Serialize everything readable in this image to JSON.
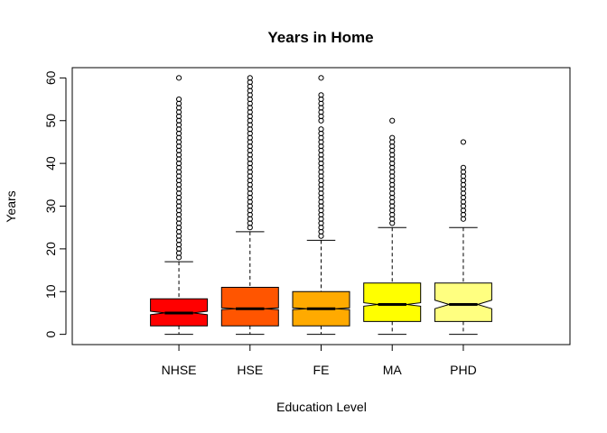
{
  "chart_data": {
    "type": "boxplot",
    "title": "Years in Home",
    "xlabel": "Education Level",
    "ylabel": "Years",
    "ylim": [
      -2.4,
      62.4
    ],
    "yticks": [
      0,
      10,
      20,
      30,
      40,
      50,
      60
    ],
    "notch": true,
    "categories": [
      "NHSE",
      "HSE",
      "FE",
      "MA",
      "PHD"
    ],
    "series": [
      {
        "category": "NHSE",
        "color": "#FF0000",
        "min": 0,
        "q1": 2,
        "median": 5,
        "q3": 8.3,
        "whisker_high": 17,
        "notch_low": 4.6,
        "notch_high": 5.4,
        "outliers": [
          18,
          19,
          20,
          21,
          22,
          23,
          24,
          25,
          26,
          27,
          28,
          29,
          30,
          31,
          32,
          33,
          34,
          35,
          36,
          37,
          38,
          39,
          40,
          41,
          42,
          43,
          44,
          45,
          46,
          47,
          48,
          49,
          50,
          51,
          52,
          53,
          54,
          55,
          60
        ]
      },
      {
        "category": "HSE",
        "color": "#FF5500",
        "min": 0,
        "q1": 2,
        "median": 6,
        "q3": 11,
        "whisker_high": 24,
        "notch_low": 5.8,
        "notch_high": 6.2,
        "outliers": [
          25,
          26,
          27,
          28,
          29,
          30,
          31,
          32,
          33,
          34,
          35,
          36,
          37,
          38,
          39,
          40,
          41,
          42,
          43,
          44,
          45,
          46,
          47,
          48,
          49,
          50,
          51,
          52,
          53,
          54,
          55,
          56,
          57,
          58,
          59,
          60
        ]
      },
      {
        "category": "FE",
        "color": "#FFAA00",
        "min": 0,
        "q1": 2,
        "median": 6,
        "q3": 10,
        "whisker_high": 22,
        "notch_low": 5.8,
        "notch_high": 6.2,
        "outliers": [
          23,
          24,
          25,
          26,
          27,
          28,
          29,
          30,
          31,
          32,
          33,
          34,
          35,
          36,
          37,
          38,
          39,
          40,
          41,
          42,
          43,
          44,
          45,
          46,
          47,
          48,
          50,
          51,
          52,
          53,
          54,
          55,
          56,
          60
        ]
      },
      {
        "category": "MA",
        "color": "#FFFF00",
        "min": 0,
        "q1": 3,
        "median": 7,
        "q3": 12,
        "whisker_high": 25,
        "notch_low": 6.6,
        "notch_high": 7.4,
        "outliers": [
          26,
          27,
          28,
          29,
          30,
          31,
          32,
          33,
          34,
          35,
          36,
          37,
          38,
          39,
          40,
          41,
          42,
          43,
          44,
          45,
          46,
          50
        ]
      },
      {
        "category": "PHD",
        "color": "#FFFF80",
        "min": 0,
        "q1": 3,
        "median": 7,
        "q3": 12,
        "whisker_high": 25,
        "notch_low": 6.0,
        "notch_high": 8.0,
        "outliers": [
          27,
          28,
          29,
          30,
          31,
          32,
          33,
          34,
          35,
          36,
          37,
          38,
          39,
          45
        ]
      }
    ]
  }
}
